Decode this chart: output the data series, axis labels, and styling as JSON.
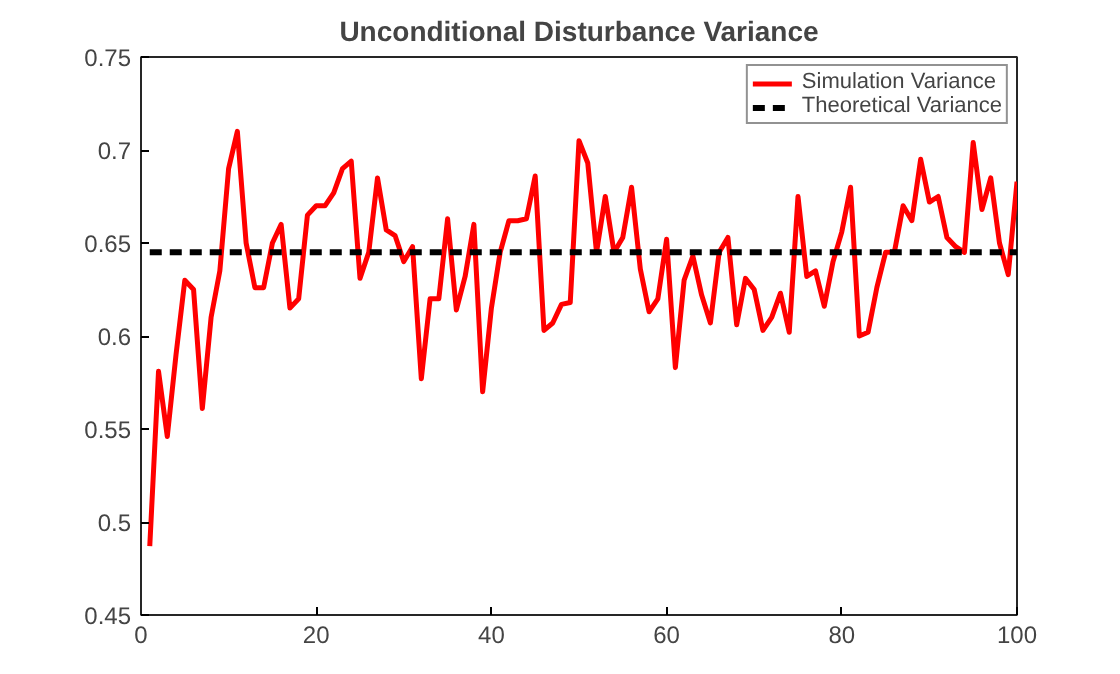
{
  "chart_data": {
    "type": "line",
    "title": "Unconditional Disturbance Variance",
    "x": [
      1,
      2,
      3,
      4,
      5,
      6,
      7,
      8,
      9,
      10,
      11,
      12,
      13,
      14,
      15,
      16,
      17,
      18,
      19,
      20,
      21,
      22,
      23,
      24,
      25,
      26,
      27,
      28,
      29,
      30,
      31,
      32,
      33,
      34,
      35,
      36,
      37,
      38,
      39,
      40,
      41,
      42,
      43,
      44,
      45,
      46,
      47,
      48,
      49,
      50,
      51,
      52,
      53,
      54,
      55,
      56,
      57,
      58,
      59,
      60,
      61,
      62,
      63,
      64,
      65,
      66,
      67,
      68,
      69,
      70,
      71,
      72,
      73,
      74,
      75,
      76,
      77,
      78,
      79,
      80,
      81,
      82,
      83,
      84,
      85,
      86,
      87,
      88,
      89,
      90,
      91,
      92,
      93,
      94,
      95,
      96,
      97,
      98,
      99,
      100
    ],
    "series": [
      {
        "name": "Simulation Variance",
        "color": "#ff0000",
        "line_style": "solid",
        "values": [
          0.487,
          0.581,
          0.546,
          0.59,
          0.63,
          0.625,
          0.561,
          0.61,
          0.635,
          0.69,
          0.71,
          0.65,
          0.626,
          0.626,
          0.65,
          0.66,
          0.615,
          0.62,
          0.665,
          0.67,
          0.67,
          0.677,
          0.69,
          0.694,
          0.631,
          0.645,
          0.685,
          0.657,
          0.654,
          0.64,
          0.648,
          0.577,
          0.62,
          0.62,
          0.663,
          0.614,
          0.632,
          0.66,
          0.57,
          0.615,
          0.645,
          0.662,
          0.662,
          0.663,
          0.686,
          0.603,
          0.607,
          0.617,
          0.618,
          0.705,
          0.693,
          0.645,
          0.675,
          0.645,
          0.653,
          0.68,
          0.636,
          0.613,
          0.62,
          0.652,
          0.583,
          0.63,
          0.643,
          0.622,
          0.607,
          0.645,
          0.653,
          0.606,
          0.631,
          0.625,
          0.603,
          0.61,
          0.623,
          0.602,
          0.675,
          0.632,
          0.635,
          0.616,
          0.64,
          0.656,
          0.68,
          0.6,
          0.602,
          0.626,
          0.645,
          0.645,
          0.67,
          0.662,
          0.695,
          0.672,
          0.675,
          0.653,
          0.648,
          0.645,
          0.704,
          0.668,
          0.685,
          0.65,
          0.633,
          0.683
        ]
      },
      {
        "name": "Theoretical Variance",
        "color": "#000000",
        "line_style": "dashed",
        "x": [
          1,
          100
        ],
        "values": [
          0.645,
          0.645
        ]
      }
    ],
    "xlim": [
      0,
      100
    ],
    "xticks": [
      0,
      20,
      40,
      60,
      80,
      100
    ],
    "ylim": [
      0.45,
      0.75
    ],
    "yticks": [
      0.45,
      0.5,
      0.55,
      0.6,
      0.65,
      0.7,
      0.75
    ],
    "legend": "top right"
  }
}
